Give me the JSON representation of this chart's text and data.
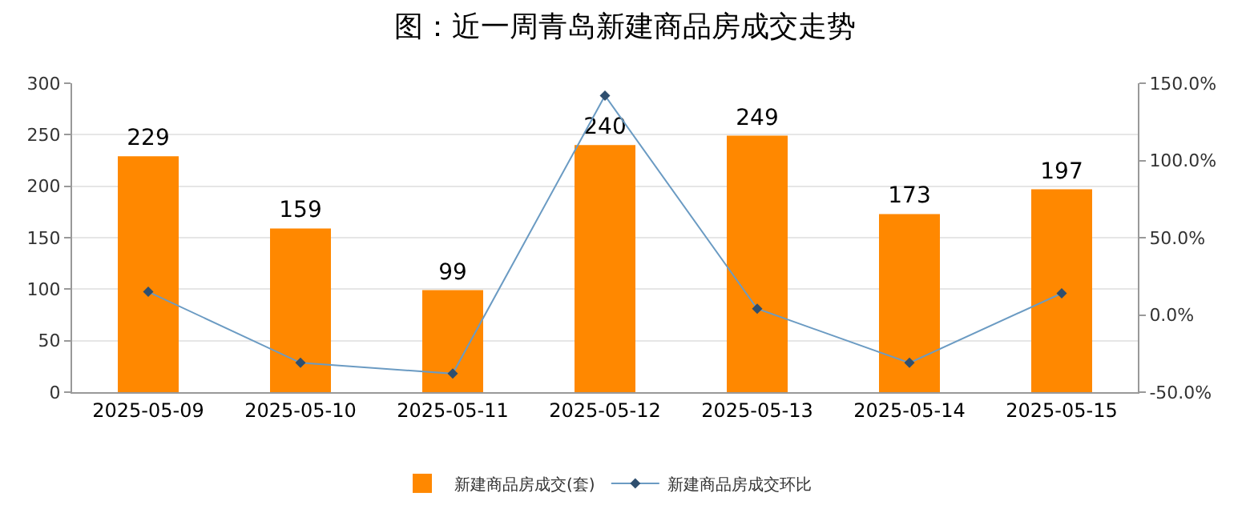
{
  "chart_data": {
    "type": "bar",
    "title": "图：近一周青岛新建商品房成交走势",
    "categories": [
      "2025-05-09",
      "2025-05-10",
      "2025-05-11",
      "2025-05-12",
      "2025-05-13",
      "2025-05-14",
      "2025-05-15"
    ],
    "series": [
      {
        "name": "新建商品房成交(套)",
        "color": "#ff8800",
        "values": [
          229,
          159,
          99,
          240,
          249,
          173,
          197
        ],
        "data_labels": true
      },
      {
        "name": "新建商品房成交环比",
        "type": "line",
        "axis": "y2",
        "color": "#6b9bc3",
        "marker": "diamond",
        "values": [
          15,
          -31,
          -38,
          142,
          4,
          -31,
          14
        ]
      }
    ],
    "ylim": [
      0,
      300
    ],
    "yticks": [
      0,
      50,
      100,
      150,
      200,
      250,
      300
    ],
    "y2lim": [
      -50,
      150
    ],
    "y2ticks": [
      {
        "value": -50,
        "label": "-50.0%"
      },
      {
        "value": 0,
        "label": "0.0%"
      },
      {
        "value": 50,
        "label": "50.0%"
      },
      {
        "value": 100,
        "label": "100.0%"
      },
      {
        "value": 150,
        "label": "150.0%"
      }
    ],
    "grid": "y",
    "legend": "bottom"
  }
}
